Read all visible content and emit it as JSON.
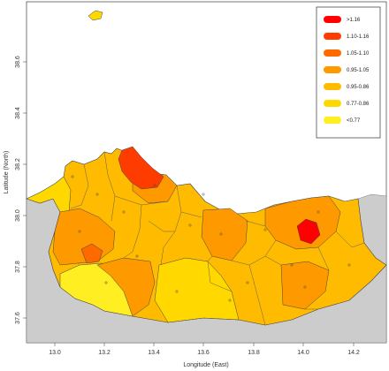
{
  "map": {
    "xlabel": "Longitude (East)",
    "ylabel": "Latitude (North)",
    "x_ticks": [
      "13.0",
      "13.2",
      "13.4",
      "13.6",
      "13.8",
      "14.0",
      "14.2"
    ],
    "y_ticks": [
      "37.6",
      "37.8",
      "38.0",
      "38.2",
      "38.4",
      "38.6"
    ],
    "colors": {
      "sea": "#ffffff",
      "neighbor_land": "#cccccc",
      "border": "#444444"
    }
  },
  "legend": {
    "items": [
      {
        "label": ">1.16",
        "color": "#ff0000"
      },
      {
        "label": "1.10-1.16",
        "color": "#ff3c00"
      },
      {
        "label": "1.05-1.10",
        "color": "#ff6a00"
      },
      {
        "label": "0.95-1.05",
        "color": "#ff9900"
      },
      {
        "label": "0.95-0.86",
        "color": "#ffbb00"
      },
      {
        "label": "0.77-0.86",
        "color": "#ffd800"
      },
      {
        "label": "<0.77",
        "color": "#ffee22"
      }
    ]
  }
}
